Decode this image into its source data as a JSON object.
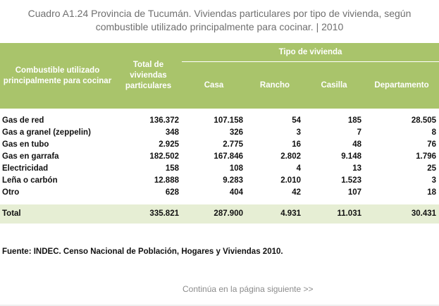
{
  "title": {
    "line1": "Cuadro A1.24 Provincia de Tucumán. Viviendas particulares por tipo de vivienda, según",
    "line2": "combustible utilizado principalmente para cocinar.  |  2010"
  },
  "header": {
    "combustible": "Combustible utilizado principalmente para cocinar",
    "total": "Total de viviendas particulares",
    "tipo": "Tipo de vivienda",
    "sub": [
      "Casa",
      "Rancho",
      "Casilla",
      "Departamento"
    ]
  },
  "rows": [
    {
      "label": "Gas de red",
      "values": [
        "136.372",
        "107.158",
        "54",
        "185",
        "28.505"
      ]
    },
    {
      "label": "Gas a granel (zeppelin)",
      "values": [
        "348",
        "326",
        "3",
        "7",
        "8"
      ]
    },
    {
      "label": "Gas en tubo",
      "values": [
        "2.925",
        "2.775",
        "16",
        "48",
        "76"
      ]
    },
    {
      "label": "Gas en garrafa",
      "values": [
        "182.502",
        "167.846",
        "2.802",
        "9.148",
        "1.796"
      ]
    },
    {
      "label": "Electricidad",
      "values": [
        "158",
        "108",
        "4",
        "13",
        "25"
      ]
    },
    {
      "label": "Leña o carbón",
      "values": [
        "12.888",
        "9.283",
        "2.010",
        "1.523",
        "3"
      ]
    },
    {
      "label": "Otro",
      "values": [
        "628",
        "404",
        "42",
        "107",
        "18"
      ]
    }
  ],
  "total": {
    "label": "Total",
    "values": [
      "335.821",
      "287.900",
      "4.931",
      "11.031",
      "30.431"
    ]
  },
  "source": "Fuente: INDEC. Censo Nacional de Población, Hogares y Viviendas 2010.",
  "continue_link": "Continúa en la página siguiente >>",
  "colors": {
    "header_bg": "#a9c46b",
    "total_bg": "#e6eed4",
    "title_text": "#6f6f6f"
  }
}
